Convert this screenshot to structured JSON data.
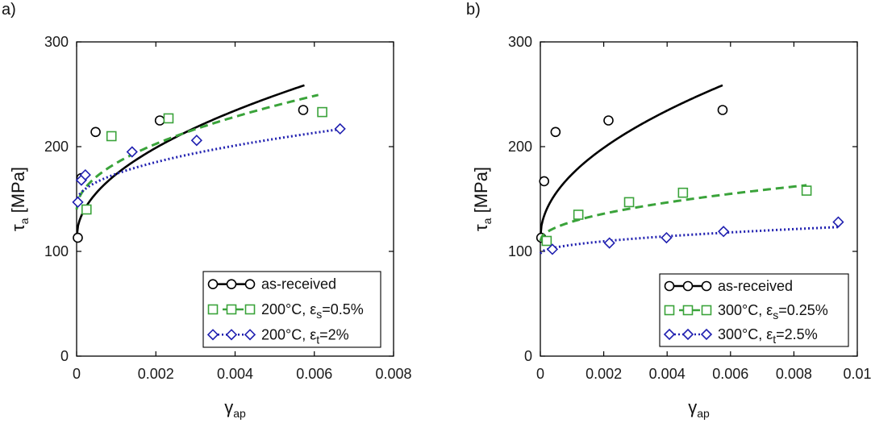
{
  "chart_data": [
    {
      "type": "scatter",
      "panel_label": "a)",
      "xlabel_symbol": "γ",
      "xlabel_sub": "ap",
      "ylabel_symbol": "τ",
      "ylabel_sub": "a",
      "ylabel_unit": "[MPa]",
      "xlim": [
        0,
        0.008
      ],
      "ylim": [
        0,
        300
      ],
      "xticks": [
        0,
        0.002,
        0.004,
        0.006,
        0.008
      ],
      "xtick_labels": [
        "0",
        "0.002",
        "0.004",
        "0.006",
        "0.008"
      ],
      "yticks": [
        0,
        100,
        200,
        300
      ],
      "ytick_labels": [
        "0",
        "100",
        "200",
        "300"
      ],
      "legend_position": "bottom-right",
      "series": [
        {
          "legend_main": "as-received",
          "legend_sub": "",
          "legend_tail": "",
          "marker": "circle",
          "color": "#000000",
          "line_style": "solid",
          "points": [
            [
              3e-05,
              113
            ],
            [
              0.00012,
              170
            ],
            [
              0.00048,
              214
            ],
            [
              0.0021,
              225
            ],
            [
              0.00572,
              235
            ]
          ],
          "fit": {
            "a": 113,
            "b": 1920,
            "n": 0.5,
            "x_end": 0.00575
          }
        },
        {
          "legend_main": "200°C, ε",
          "legend_sub": "s",
          "legend_tail": "=0.5%",
          "marker": "square",
          "color": "#3aa33a",
          "line_style": "dashed",
          "points": [
            [
              0.00025,
              140
            ],
            [
              0.00088,
              210
            ],
            [
              0.00232,
              227
            ],
            [
              0.0062,
              233
            ]
          ],
          "fit": {
            "a": 140,
            "b": 1400,
            "n": 0.5,
            "x_end": 0.0061
          }
        },
        {
          "legend_main": "200°C, ε",
          "legend_sub": "t",
          "legend_tail": "=2%",
          "marker": "diamond",
          "color": "#2020b0",
          "line_style": "dotted",
          "points": [
            [
              3e-05,
              147
            ],
            [
              0.00012,
              168
            ],
            [
              0.00022,
              173
            ],
            [
              0.0014,
              195
            ],
            [
              0.00303,
              206
            ],
            [
              0.00665,
              217
            ]
          ],
          "fit": {
            "a": 147,
            "b": 854,
            "n": 0.5,
            "x_end": 0.00665
          }
        }
      ]
    },
    {
      "type": "scatter",
      "panel_label": "b)",
      "xlabel_symbol": "γ",
      "xlabel_sub": "ap",
      "ylabel_symbol": "τ",
      "ylabel_sub": "a",
      "ylabel_unit": "[MPa]",
      "xlim": [
        0,
        0.01
      ],
      "ylim": [
        0,
        300
      ],
      "xticks": [
        0,
        0.002,
        0.004,
        0.006,
        0.008,
        0.01
      ],
      "xtick_labels": [
        "0",
        "0.002",
        "0.004",
        "0.006",
        "0.008",
        "0.01"
      ],
      "yticks": [
        0,
        100,
        200,
        300
      ],
      "ytick_labels": [
        "0",
        "100",
        "200",
        "300"
      ],
      "legend_position": "bottom-right",
      "series": [
        {
          "legend_main": "as-received",
          "legend_sub": "",
          "legend_tail": "",
          "marker": "circle",
          "color": "#000000",
          "line_style": "solid",
          "points": [
            [
              3e-05,
              113
            ],
            [
              0.00012,
              167
            ],
            [
              0.00048,
              214
            ],
            [
              0.00215,
              225
            ],
            [
              0.00575,
              235
            ]
          ],
          "fit": {
            "a": 113,
            "b": 1920,
            "n": 0.5,
            "x_end": 0.00575
          }
        },
        {
          "legend_main": "300°C, ε",
          "legend_sub": "s",
          "legend_tail": "=0.25%",
          "marker": "square",
          "color": "#3aa33a",
          "line_style": "dashed",
          "points": [
            [
              0.0002,
              110
            ],
            [
              0.0012,
              135
            ],
            [
              0.0028,
              147
            ],
            [
              0.0045,
              156
            ],
            [
              0.0084,
              158
            ]
          ],
          "fit": {
            "a": 110,
            "b": 580,
            "n": 0.5,
            "x_end": 0.0084
          }
        },
        {
          "legend_main": "300°C, ε",
          "legend_sub": "t",
          "legend_tail": "=2.5%",
          "marker": "diamond",
          "color": "#2020b0",
          "line_style": "dotted",
          "points": [
            [
              0.00038,
              102
            ],
            [
              0.00218,
              108
            ],
            [
              0.00398,
              113
            ],
            [
              0.00578,
              119
            ],
            [
              0.0094,
              128
            ]
          ],
          "fit": {
            "a": 98,
            "b": 260,
            "n": 0.5,
            "x_end": 0.0094
          }
        }
      ]
    }
  ]
}
